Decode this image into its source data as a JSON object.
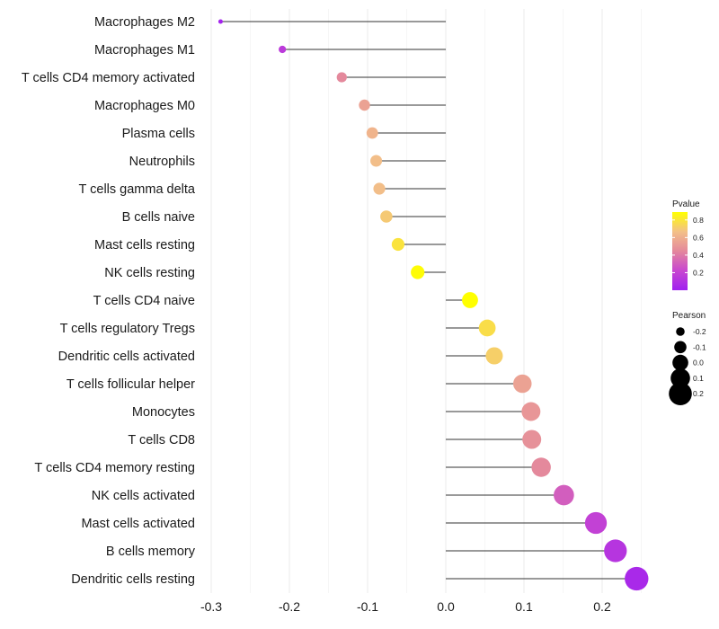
{
  "chart_data": {
    "type": "lollipop",
    "title": "",
    "xlabel": "",
    "ylabel": "",
    "xlim": [
      -0.3,
      0.25
    ],
    "x_ticks": [
      -0.3,
      -0.2,
      -0.1,
      0.0,
      0.1,
      0.2
    ],
    "x_tick_labels": [
      "-0.3",
      "-0.2",
      "-0.1",
      "0.0",
      "0.1",
      "0.2"
    ],
    "categories": [
      "Macrophages M2",
      "Macrophages M1",
      "T cells CD4 memory activated",
      "Macrophages M0",
      "Plasma cells",
      "Neutrophils",
      "T cells gamma delta",
      "B cells naive",
      "Mast cells resting",
      "NK cells resting",
      "T cells CD4 naive",
      "T cells regulatory  Tregs ",
      "Dendritic cells activated",
      "T cells follicular helper",
      "Monocytes",
      "T cells CD8",
      "T cells CD4 memory resting",
      "NK cells activated",
      "Mast cells activated",
      "B cells memory",
      "Dendritic cells resting"
    ],
    "pearson": [
      -0.288,
      -0.209,
      -0.133,
      -0.104,
      -0.094,
      -0.089,
      -0.085,
      -0.076,
      -0.061,
      -0.036,
      0.031,
      0.053,
      0.062,
      0.098,
      0.109,
      0.11,
      0.122,
      0.151,
      0.192,
      0.217,
      0.244
    ],
    "pvalue": [
      0.02,
      0.15,
      0.45,
      0.55,
      0.62,
      0.66,
      0.66,
      0.7,
      0.79,
      0.88,
      0.89,
      0.77,
      0.72,
      0.55,
      0.5,
      0.48,
      0.45,
      0.3,
      0.19,
      0.12,
      0.05
    ],
    "legend_color": {
      "title": "Pvalue",
      "ticks": [
        0.8,
        0.6,
        0.4,
        0.2
      ],
      "tick_labels": [
        "0.8",
        "0.6",
        "0.4",
        "0.2"
      ],
      "range": [
        0.0,
        0.89
      ],
      "colors": [
        "#a020f0",
        "#c847d0",
        "#e4889c",
        "#f3c088",
        "#ffff00"
      ]
    },
    "legend_size": {
      "title": "Pearson",
      "values": [
        -0.2,
        -0.1,
        0.0,
        0.1,
        0.2
      ],
      "labels": [
        "-0.2",
        "-0.1",
        "0.0",
        "0.1",
        "0.2"
      ]
    },
    "grid": true,
    "legend_position": "right"
  }
}
